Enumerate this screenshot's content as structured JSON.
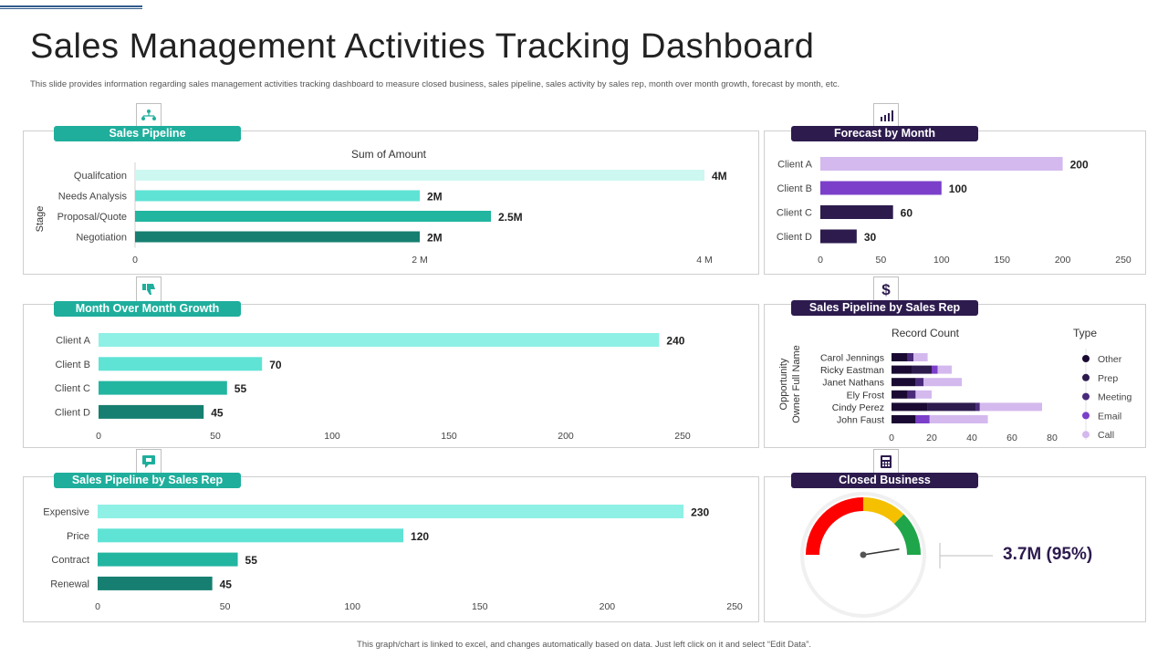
{
  "title": "Sales Management Activities Tracking Dashboard",
  "subtitle": "This slide provides information regarding sales management  activities tracking dashboard to measure closed business, sales pipeline, sales activity by sales rep, month over month growth, forecast by month, etc.",
  "footer": "This graph/chart is linked to excel, and changes automatically based on data. Just left click on it and select “Edit Data”.",
  "panels": {
    "sales_pipeline": "Sales Pipeline",
    "forecast_by_month": "Forecast by Month",
    "month_over_month": "Month Over Month Growth",
    "pipeline_by_rep_record": "Sales Pipeline by Sales Rep",
    "pipeline_by_rep_bars": "Sales Pipeline by Sales Rep",
    "closed_business": "Closed Business"
  },
  "icons": {
    "sales_pipeline": "org-chart-icon",
    "forecast_by_month": "bar-chart-icon",
    "month_over_month": "thumbs-down-icon",
    "pipeline_by_rep_record": "dollar-icon",
    "pipeline_by_rep_bars": "chat-thumbs-icon",
    "closed_business": "calculator-icon"
  },
  "colors": {
    "teal_pill": "#1fae9c",
    "purple_pill": "#2d1b4e"
  },
  "closed_business_value": "3.7M (95%)",
  "chart_data": [
    {
      "id": "sales-pipeline",
      "type": "bar",
      "orientation": "horizontal",
      "title": "Sum of Amount",
      "ylabel": "Stage",
      "categories": [
        "Qualifcation",
        "Needs Analysis",
        "Proposal/Quote",
        "Negotiation"
      ],
      "values": [
        4,
        2,
        2.5,
        2
      ],
      "value_labels": [
        "4M",
        "2M",
        "2.5M",
        "2M"
      ],
      "ticks": [
        0,
        2,
        4
      ],
      "tick_labels": [
        "0",
        "2 M",
        "4 M"
      ],
      "xlim": [
        0,
        4
      ],
      "colors": [
        "#cdf7f1",
        "#5fe3d4",
        "#22b5a0",
        "#167f71"
      ]
    },
    {
      "id": "forecast-by-month",
      "type": "bar",
      "orientation": "horizontal",
      "categories": [
        "Client A",
        "Client B",
        "Client C",
        "Client D"
      ],
      "values": [
        200,
        100,
        60,
        30
      ],
      "value_labels": [
        "200",
        "100",
        "60",
        "30"
      ],
      "ticks": [
        0,
        50,
        100,
        150,
        200,
        250
      ],
      "tick_labels": [
        "0",
        "50",
        "100",
        "150",
        "200",
        "250"
      ],
      "xlim": [
        0,
        250
      ],
      "colors": [
        "#d4b9ee",
        "#7b3fc9",
        "#2d1b4e",
        "#2d1b4e"
      ]
    },
    {
      "id": "month-over-month",
      "type": "bar",
      "orientation": "horizontal",
      "categories": [
        "Client A",
        "Client B",
        "Client C",
        "Client D"
      ],
      "values": [
        240,
        70,
        55,
        45
      ],
      "value_labels": [
        "240",
        "70",
        "55",
        "45"
      ],
      "ticks": [
        0,
        50,
        100,
        150,
        200,
        250
      ],
      "tick_labels": [
        "0",
        "50",
        "100",
        "150",
        "200",
        "250"
      ],
      "xlim": [
        0,
        250
      ],
      "colors": [
        "#8ff0e5",
        "#5fe3d4",
        "#22b5a0",
        "#167f71"
      ]
    },
    {
      "id": "pipeline-by-rep-record",
      "type": "bar",
      "orientation": "horizontal",
      "stacked": true,
      "title": "Record Count",
      "ylabel": "Opportunity Owner Full Name",
      "legend_title": "Type",
      "legend_position": "right",
      "categories": [
        "Carol Jennings",
        "Ricky Eastman",
        "Janet Nathans",
        "Ely Frost",
        "Cindy Perez",
        "John Faust"
      ],
      "series": [
        {
          "name": "Other",
          "color": "#1a0a33",
          "values": [
            8,
            10,
            12,
            8,
            18,
            12
          ]
        },
        {
          "name": "Prep",
          "color": "#2d1b4e",
          "values": [
            0,
            10,
            0,
            0,
            24,
            0
          ]
        },
        {
          "name": "Meeting",
          "color": "#4a2a7a",
          "values": [
            3,
            0,
            4,
            4,
            2,
            0
          ]
        },
        {
          "name": "Email",
          "color": "#7b3fc9",
          "values": [
            0,
            3,
            0,
            0,
            0,
            7
          ]
        },
        {
          "name": "Call",
          "color": "#d4b9ee",
          "values": [
            7,
            7,
            19,
            8,
            31,
            29
          ]
        }
      ],
      "ticks": [
        0,
        20,
        40,
        60,
        80
      ],
      "tick_labels": [
        "0",
        "20",
        "40",
        "60",
        "80"
      ],
      "xlim": [
        0,
        80
      ]
    },
    {
      "id": "pipeline-by-rep-bars",
      "type": "bar",
      "orientation": "horizontal",
      "categories": [
        "Expensive",
        "Price",
        "Contract",
        "Renewal"
      ],
      "values": [
        230,
        120,
        55,
        45
      ],
      "value_labels": [
        "230",
        "120",
        "55",
        "45"
      ],
      "ticks": [
        0,
        50,
        100,
        150,
        200,
        250
      ],
      "tick_labels": [
        "0",
        "50",
        "100",
        "150",
        "200",
        "250"
      ],
      "xlim": [
        0,
        250
      ],
      "colors": [
        "#8ff0e5",
        "#5fe3d4",
        "#22b5a0",
        "#167f71"
      ]
    },
    {
      "id": "closed-business",
      "type": "gauge",
      "value_percent": 95,
      "segments": [
        {
          "color": "#ff0000",
          "from": 0,
          "to": 50
        },
        {
          "color": "#f5c000",
          "from": 50,
          "to": 75
        },
        {
          "color": "#1fa64a",
          "from": 75,
          "to": 100
        }
      ]
    }
  ]
}
